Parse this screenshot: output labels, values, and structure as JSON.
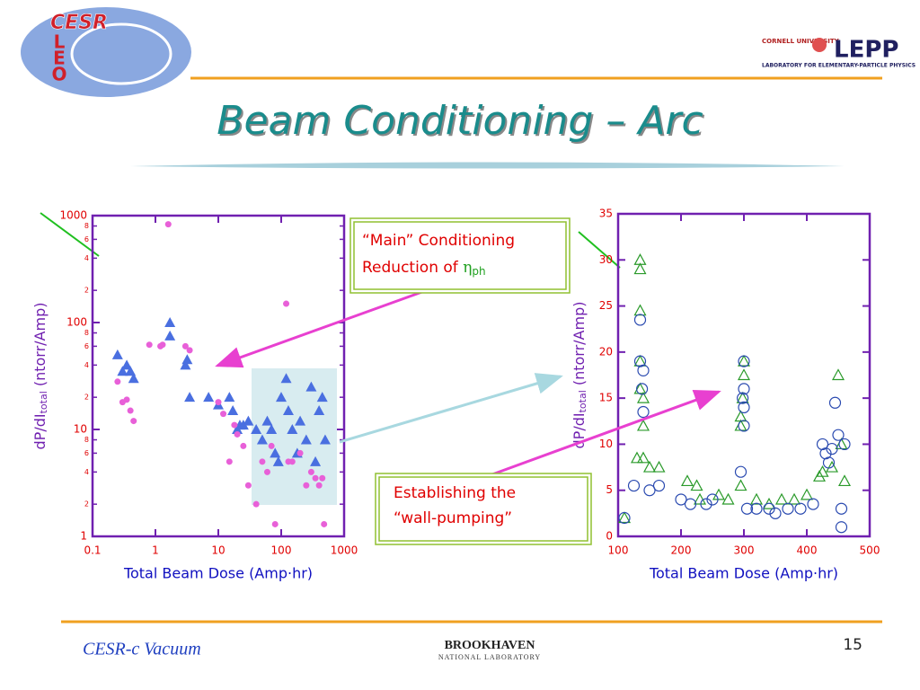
{
  "slide": {
    "title": "Beam Conditioning – Arc",
    "footer": "CESR-c Vacuum",
    "page_number": "15",
    "logo_left": {
      "top": "CESR",
      "letters": [
        "L",
        "E",
        "O"
      ]
    },
    "logo_right": {
      "university": "CORNELL UNIVERSITY",
      "name": "LEPP",
      "tagline": "LABORATORY FOR ELEMENTARY-PARTICLE PHYSICS"
    },
    "logo_bottom": {
      "name": "BROOKHAVEN",
      "sub": "NATIONAL LABORATORY"
    },
    "callout_main": {
      "line1": "“Main” Conditioning",
      "line2": "Reduction of ",
      "symbol": "η",
      "sub": "ph"
    },
    "callout_wall": {
      "line1": "Establishing the",
      "line2": "“wall-pumping”"
    }
  },
  "chart_data": [
    {
      "type": "scatter",
      "xscale": "log",
      "yscale": "log",
      "x_label": "Total Beam Dose (Amp·hr)",
      "y_label": {
        "main": "dP/dI",
        "sub": "total",
        "unit": " (ntorr/Amp)"
      },
      "xlim": [
        0.1,
        1000
      ],
      "ylim": [
        1,
        1000
      ],
      "xticks": [
        0.1,
        1,
        10,
        100,
        1000
      ],
      "yticks": [
        1,
        10,
        100,
        1000
      ],
      "yminor_ticks": [
        {
          "value": 2,
          "label": "2"
        },
        {
          "value": 4,
          "label": "4"
        },
        {
          "value": 6,
          "label": "6"
        },
        {
          "value": 8,
          "label": "8"
        },
        {
          "value": 20,
          "label": "2"
        },
        {
          "value": 40,
          "label": "4"
        },
        {
          "value": 60,
          "label": "6"
        },
        {
          "value": 80,
          "label": "8"
        },
        {
          "value": 200,
          "label": "2"
        },
        {
          "value": 400,
          "label": "4"
        },
        {
          "value": 600,
          "label": "6"
        },
        {
          "value": 800,
          "label": "8"
        }
      ],
      "series": [
        {
          "marker": "triangle",
          "color": "#4a6fe0",
          "x": [
            0.25,
            0.3,
            0.35,
            0.4,
            0.45,
            1.7,
            1.7,
            3,
            3.2,
            3.5,
            7,
            10,
            15,
            17,
            20,
            22,
            25,
            30,
            40,
            50,
            60,
            70,
            80,
            90,
            100,
            120,
            130,
            150,
            180,
            200,
            250,
            300,
            350,
            400,
            450,
            500
          ],
          "y": [
            50,
            35,
            40,
            35,
            30,
            75,
            100,
            40,
            45,
            20,
            20,
            17,
            20,
            15,
            10,
            11,
            11,
            12,
            10,
            8,
            12,
            10,
            6,
            5,
            20,
            30,
            15,
            10,
            6,
            12,
            8,
            25,
            5,
            15,
            20,
            8
          ]
        },
        {
          "marker": "circle",
          "color": "#e860d8",
          "x": [
            0.25,
            0.3,
            0.35,
            0.4,
            0.45,
            0.8,
            1.2,
            1.3,
            1.6,
            3,
            3.5,
            10,
            12,
            15,
            18,
            20,
            25,
            30,
            40,
            50,
            60,
            70,
            80,
            120,
            130,
            150,
            200,
            250,
            300,
            350,
            400,
            450,
            480
          ],
          "y": [
            28,
            18,
            19,
            15,
            12,
            62,
            60,
            62,
            830,
            60,
            55,
            18,
            14,
            5,
            11,
            9,
            7,
            3,
            2,
            5,
            4,
            7,
            1.3,
            150,
            5,
            5,
            6,
            3,
            4,
            3.5,
            3,
            3.5,
            1.3
          ]
        }
      ]
    },
    {
      "type": "scatter",
      "x_label": "Total Beam Dose (Amp·hr)",
      "y_label": {
        "main": "dP/dI",
        "sub": "total",
        "unit": " (ntorr/Amp)"
      },
      "xlim": [
        100,
        500
      ],
      "ylim": [
        0,
        35
      ],
      "xticks": [
        100,
        200,
        300,
        400,
        500
      ],
      "yticks": [
        0,
        5,
        10,
        15,
        20,
        25,
        30,
        35
      ],
      "series": [
        {
          "marker": "triangle-open",
          "color": "#2a9a2a",
          "x": [
            110,
            130,
            135,
            135,
            135,
            135,
            135,
            140,
            140,
            150,
            165,
            140,
            210,
            225,
            230,
            260,
            275,
            295,
            295,
            298,
            300,
            300,
            295,
            320,
            340,
            360,
            380,
            400,
            420,
            425,
            440,
            450,
            455,
            460
          ],
          "y": [
            2,
            8.5,
            30,
            29,
            24.5,
            19,
            16,
            15,
            12,
            7.5,
            7.5,
            8.5,
            6,
            5.5,
            4,
            4.5,
            4,
            12,
            13,
            15,
            17.5,
            19,
            5.5,
            4,
            3.5,
            4,
            4,
            4.5,
            6.5,
            7,
            7.5,
            17.5,
            10,
            6
          ]
        },
        {
          "marker": "circle-open",
          "color": "#2a4ab0",
          "x": [
            110,
            125,
            135,
            135,
            138,
            140,
            140,
            150,
            165,
            200,
            215,
            240,
            250,
            295,
            298,
            300,
            300,
            300,
            300,
            305,
            320,
            340,
            350,
            370,
            390,
            410,
            425,
            430,
            435,
            440,
            445,
            450,
            455,
            460,
            455
          ],
          "y": [
            2,
            5.5,
            23.5,
            19,
            16,
            13.5,
            18,
            5,
            5.5,
            4,
            3.5,
            3.5,
            4,
            7,
            15,
            12,
            14,
            19,
            16,
            3,
            3,
            3,
            2.5,
            3,
            3,
            3.5,
            10,
            9,
            8,
            9.5,
            14.5,
            11,
            1,
            10,
            3
          ]
        }
      ]
    }
  ]
}
